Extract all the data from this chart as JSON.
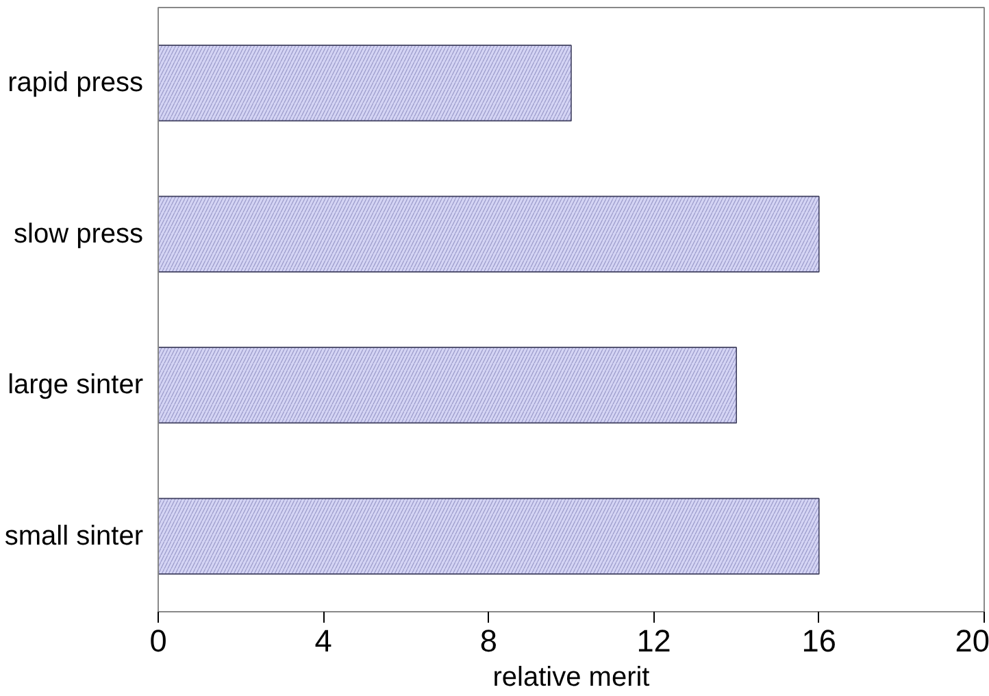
{
  "chart_data": {
    "type": "bar",
    "orientation": "horizontal",
    "xlabel": "relative merit",
    "categories": [
      "rapid press",
      "slow press",
      "large sinter",
      "small sinter"
    ],
    "values": [
      10,
      16,
      14,
      16
    ],
    "color": "#d4d4f4",
    "xlim": [
      0,
      20
    ],
    "xticks": [
      0,
      4,
      8,
      12,
      16,
      20
    ],
    "grid": false
  }
}
